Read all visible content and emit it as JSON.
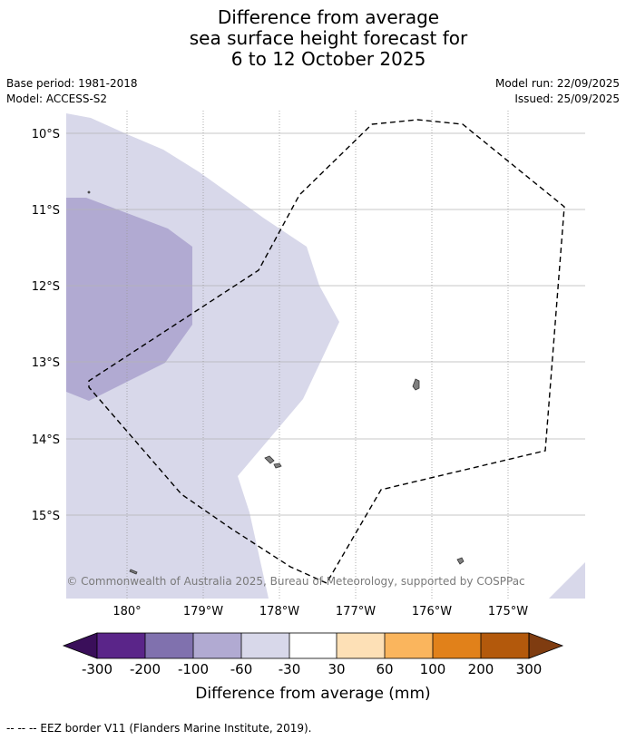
{
  "title": {
    "line1": "Difference from average",
    "line2": "sea surface height forecast for",
    "line3": "6 to 12 October 2025"
  },
  "info": {
    "base_period": "Base period: 1981-2018",
    "model": "Model: ACCESS-S2",
    "model_run": "Model run: 22/09/2025",
    "issued": "Issued: 25/09/2025"
  },
  "map": {
    "lat_labels": [
      "10°S",
      "11°S",
      "12°S",
      "13°S",
      "14°S",
      "15°S"
    ],
    "lon_labels": [
      "180°",
      "179°W",
      "178°W",
      "177°W",
      "176°W",
      "175°W"
    ],
    "copyright": "© Commonwealth of Australia 2025, Bureau of Meteorology, supported by COSPPac",
    "category_colors": {
      "-100 to -60": "#b1aad2",
      "-60 to -30": "#d8d8ea",
      "-30 to 30": "#ffffff"
    }
  },
  "colorbar": {
    "ticks": [
      "-300",
      "-200",
      "-100",
      "-60",
      "-30",
      "30",
      "60",
      "100",
      "200",
      "300"
    ],
    "label": "Difference from average (mm)",
    "colors": {
      "under": "#3a0f5a",
      "bins": [
        "#5a2589",
        "#8071ae",
        "#b1aad2",
        "#d8d8ea",
        "#ffffff",
        "#fde0b6",
        "#fab55d",
        "#e1811a",
        "#b3590c"
      ],
      "over": "#7f3c10"
    }
  },
  "footer": {
    "legend_text": "--  --  -- EEZ border V11 (Flanders Marine Institute, 2019)."
  }
}
